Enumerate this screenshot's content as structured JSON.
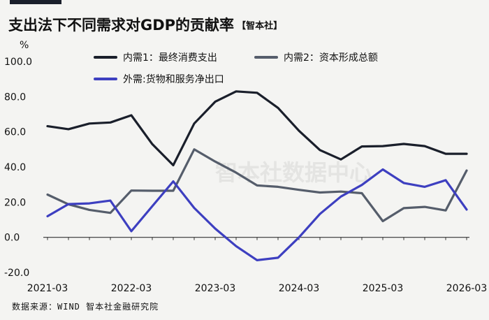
{
  "header": {
    "title": "支出法下不同需求对GDP的贡献率",
    "tag": "【智本社】",
    "unit": "%"
  },
  "footer": {
    "source": "数据来源：WIND 智本社金融研究院"
  },
  "watermark": "智本社数据中心",
  "colors": {
    "series1": "#1a1f2b",
    "series2": "#555d6b",
    "series3": "#3d3fc0"
  },
  "chart_data": {
    "type": "line",
    "title": "支出法下不同需求对GDP的贡献率",
    "ylabel": "%",
    "ylim": [
      -20,
      100
    ],
    "yticks": [
      -20,
      0,
      20,
      40,
      60,
      80,
      100
    ],
    "ytick_labels": [
      "-20.0",
      "0.0",
      "20.0",
      "40.0",
      "60.0",
      "80.0",
      "100.0"
    ],
    "x": [
      "2021-03",
      "2021-06",
      "2021-09",
      "2021-12",
      "2022-03",
      "2022-06",
      "2022-09",
      "2022-12",
      "2023-03",
      "2023-06",
      "2023-09",
      "2023-12",
      "2024-03",
      "2024-06",
      "2024-09",
      "2024-12",
      "2025-03",
      "2025-06",
      "2025-09",
      "2025-12",
      "2026-03"
    ],
    "xtick_labels": [
      "2021-03",
      "2022-03",
      "2023-03",
      "2024-03",
      "2025-03",
      "2026-03"
    ],
    "legend_position": "top",
    "series": [
      {
        "name": "内需1：最终消费支出",
        "values": [
          63.2,
          61.5,
          64.7,
          65.3,
          69.4,
          53.0,
          41.0,
          64.7,
          77.1,
          83.0,
          82.2,
          73.6,
          60.6,
          49.6,
          44.3,
          51.7,
          51.9,
          53.1,
          51.9,
          47.5,
          47.5
        ]
      },
      {
        "name": "内需2：资本形成总额",
        "values": [
          24.3,
          18.8,
          15.6,
          13.9,
          26.6,
          26.5,
          26.5,
          50.0,
          43.1,
          36.8,
          29.5,
          28.7,
          27.0,
          25.5,
          26.0,
          25.1,
          9.2,
          16.6,
          17.3,
          15.3,
          38.0
        ]
      },
      {
        "name": "外需:货物和服务净出口",
        "values": [
          12.0,
          18.9,
          19.3,
          20.9,
          3.5,
          17.7,
          31.8,
          16.7,
          5.0,
          -5.0,
          -13.0,
          -11.6,
          0.0,
          13.3,
          23.2,
          29.8,
          38.6,
          30.9,
          28.7,
          32.5,
          15.8
        ]
      }
    ]
  }
}
